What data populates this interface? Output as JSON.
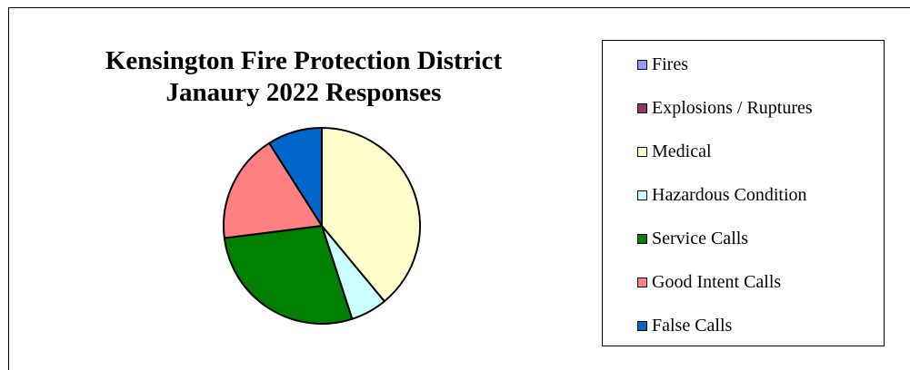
{
  "chart_data": {
    "type": "pie",
    "title": "Kensington Fire Protection District",
    "subtitle": "Janaury 2022 Responses",
    "categories": [
      "Fires",
      "Explosions / Ruptures",
      "Medical",
      "Hazardous Condition",
      "Service Calls",
      "Good Intent Calls",
      "False Calls"
    ],
    "values": [
      0,
      0,
      39,
      6,
      28,
      18,
      9
    ],
    "colors": [
      "#9999ff",
      "#993366",
      "#ffffcc",
      "#ccffff",
      "#008000",
      "#ff8080",
      "#0066cc"
    ],
    "legend_position": "right"
  }
}
